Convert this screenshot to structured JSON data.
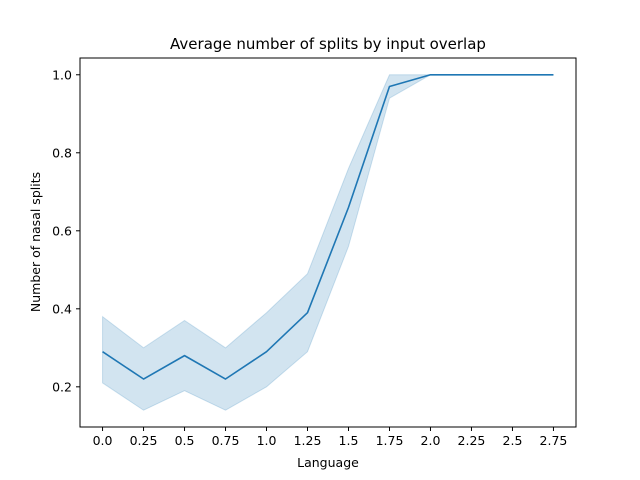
{
  "chart_data": {
    "type": "line",
    "title": "Average number of splits by input overlap",
    "xlabel": "Language",
    "ylabel": "Number of nasal splits",
    "x": [
      0.0,
      0.25,
      0.5,
      0.75,
      1.0,
      1.25,
      1.5,
      1.75,
      2.0,
      2.25,
      2.5,
      2.75
    ],
    "x_tick_labels": [
      "0.0",
      "0.25",
      "0.5",
      "0.75",
      "1.0",
      "1.25",
      "1.5",
      "1.75",
      "2.0",
      "2.25",
      "2.5",
      "2.75"
    ],
    "series": [
      {
        "values": [
          0.29,
          0.22,
          0.28,
          0.22,
          0.29,
          0.39,
          0.66,
          0.97,
          1.0,
          1.0,
          1.0,
          1.0
        ],
        "ci_lower": [
          0.21,
          0.14,
          0.19,
          0.14,
          0.2,
          0.29,
          0.56,
          0.94,
          1.0,
          1.0,
          1.0,
          1.0
        ],
        "ci_upper": [
          0.38,
          0.3,
          0.37,
          0.3,
          0.39,
          0.49,
          0.76,
          1.0,
          1.0,
          1.0,
          1.0,
          1.0
        ],
        "color": "#1f77b4",
        "band_color": "#1f77b4"
      }
    ],
    "y_ticks": [
      0.2,
      0.4,
      0.6,
      0.8,
      1.0
    ],
    "y_tick_labels": [
      "0.2",
      "0.4",
      "0.6",
      "0.8",
      "1.0"
    ],
    "xlim": [
      -0.1375,
      2.8875
    ],
    "ylim": [
      0.097,
      1.043
    ],
    "grid": false,
    "legend": "none"
  }
}
